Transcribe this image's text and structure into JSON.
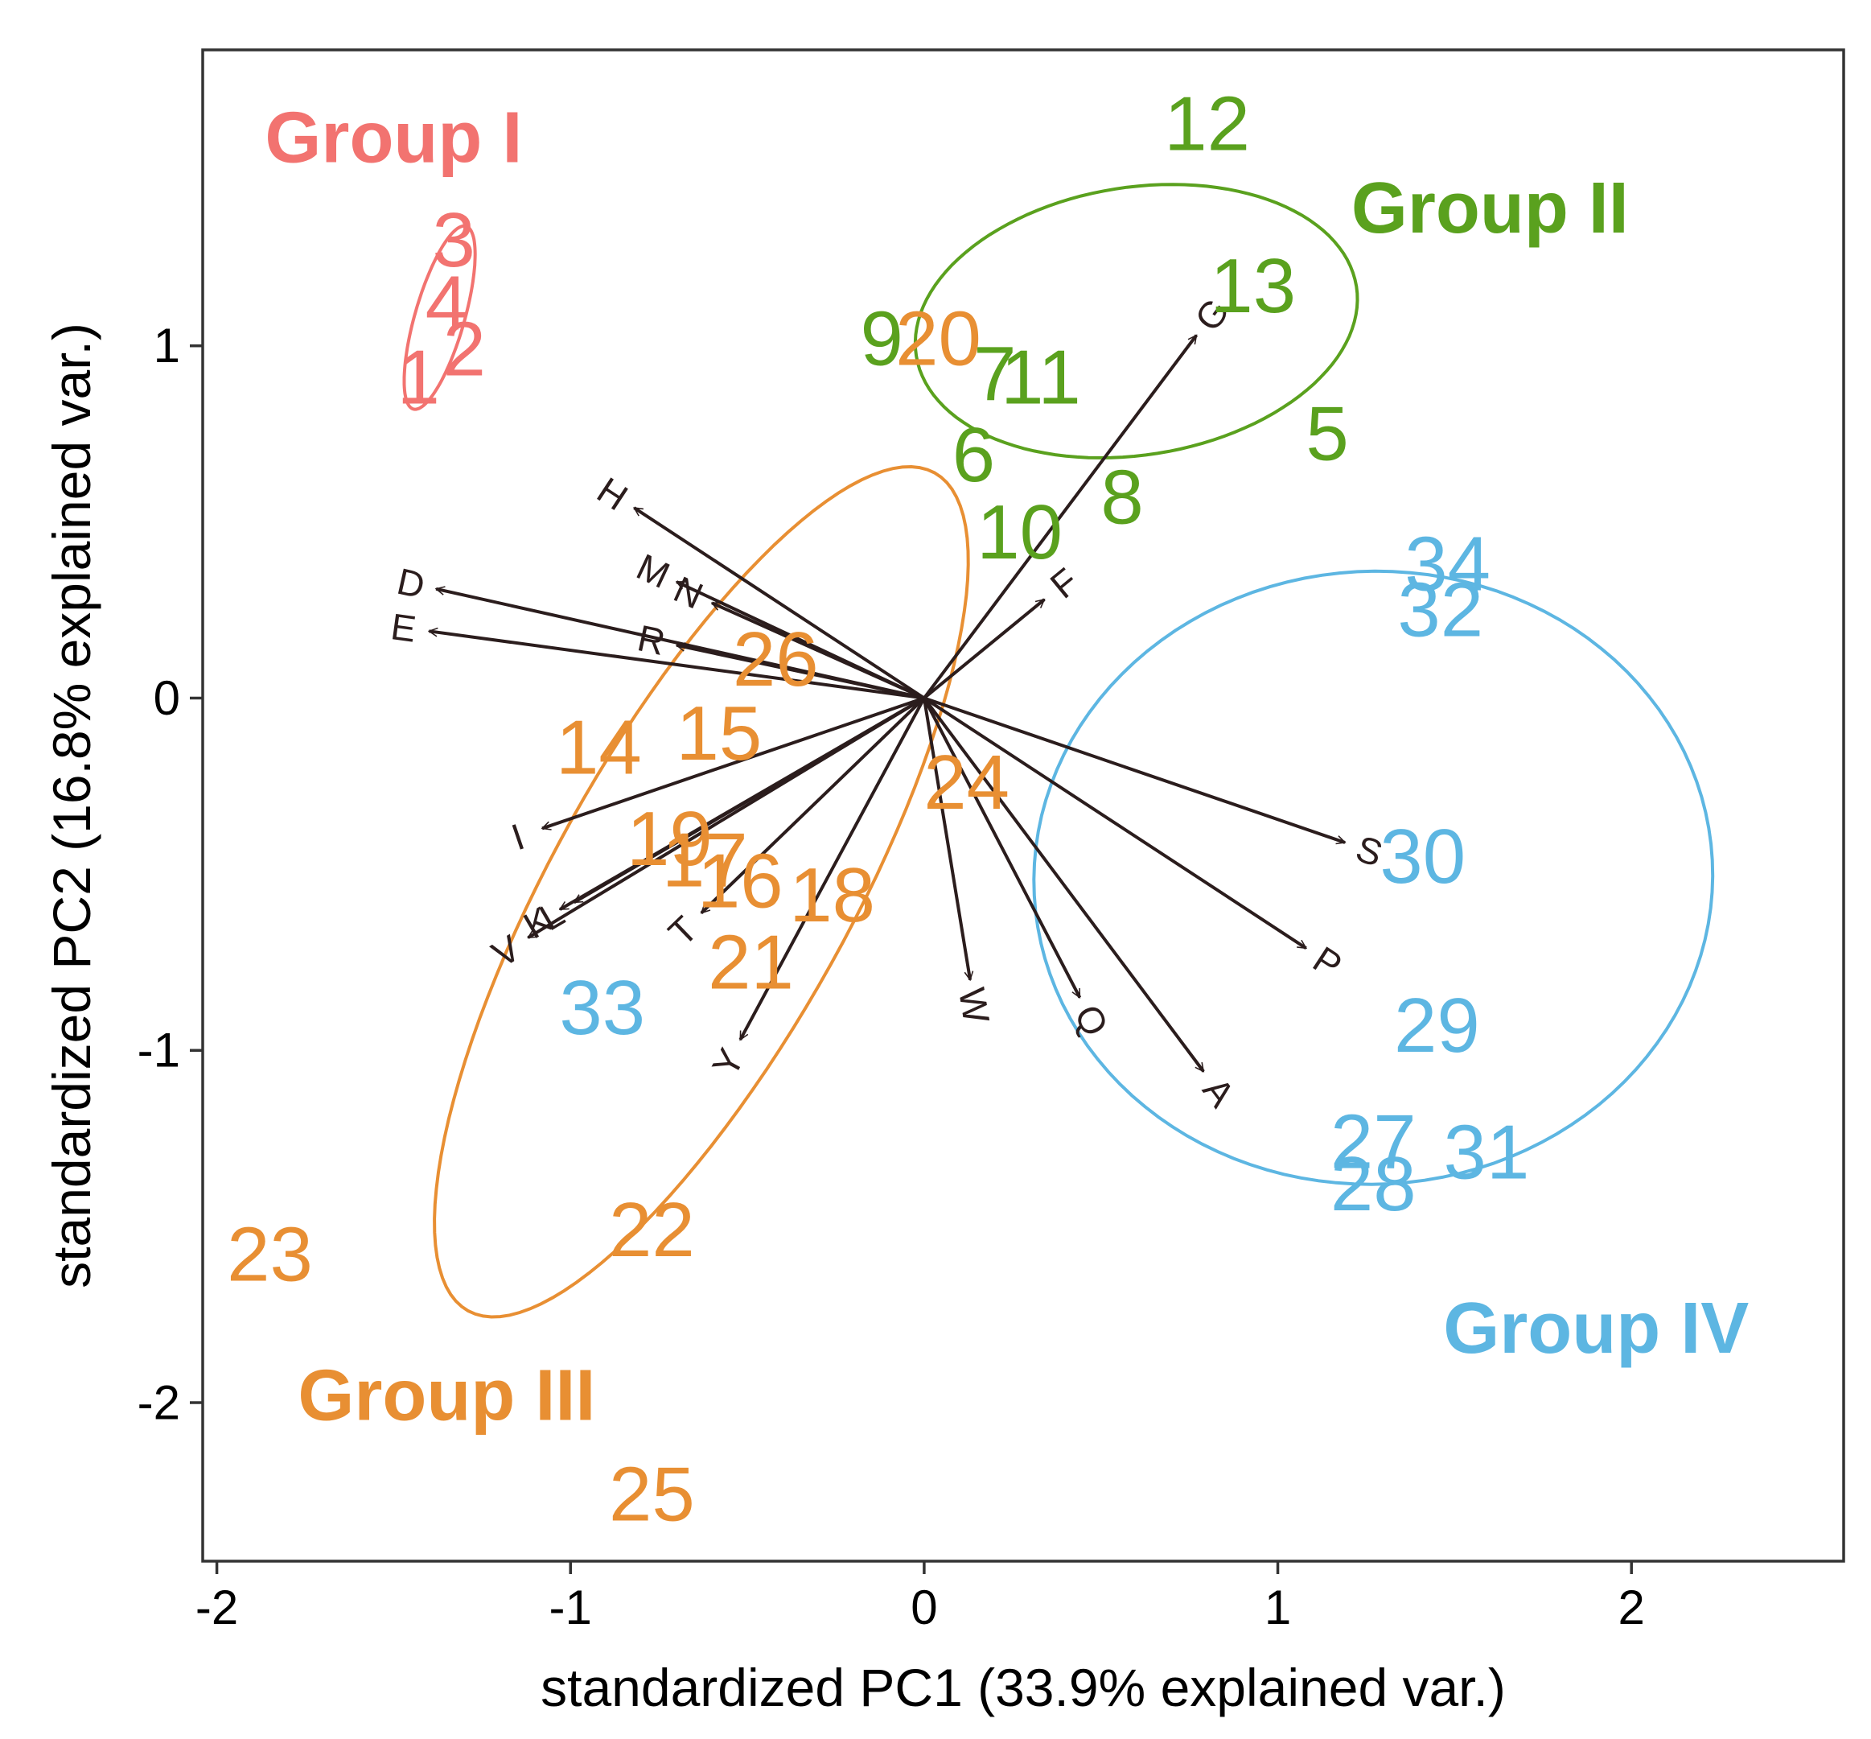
{
  "chart_data": {
    "type": "scatter",
    "subtype": "pca-biplot",
    "title": "",
    "xlabel": "standardized PC1 (33.9% explained var.)",
    "ylabel": "standardized PC2 (16.8% explained var.)",
    "xlim": [
      -2.04,
      2.6
    ],
    "ylim": [
      -2.45,
      1.84
    ],
    "xticks": [
      -2,
      -1,
      0,
      1,
      2
    ],
    "yticks": [
      -2,
      -1,
      0,
      1
    ],
    "xtick_labels": [
      "-2",
      "-1",
      "0",
      "1",
      "2"
    ],
    "ytick_labels": [
      "-2",
      "-1",
      "0",
      "1"
    ],
    "grid": false,
    "groups": [
      {
        "name": "Group I",
        "color": "#f27370",
        "label_pos": [
          -1.5,
          1.59
        ],
        "ellipse": {
          "cx": -1.37,
          "cy": 1.08,
          "rx": 0.27,
          "ry": 0.07,
          "angle": 74
        }
      },
      {
        "name": "Group II",
        "color": "#5aa11e",
        "label_pos": [
          1.6,
          1.39
        ],
        "ellipse": {
          "cx": 0.6,
          "cy": 1.07,
          "rx": 0.63,
          "ry": 0.38,
          "angle": 9
        }
      },
      {
        "name": "Group III",
        "color": "#e88f33",
        "label_pos": [
          -1.35,
          -1.98
        ],
        "ellipse": {
          "cx": -0.63,
          "cy": -0.55,
          "rx": 1.36,
          "ry": 0.42,
          "angle": 61
        }
      },
      {
        "name": "Group IV",
        "color": "#5db6e2",
        "label_pos": [
          1.9,
          -1.79
        ],
        "ellipse": {
          "cx": 1.27,
          "cy": -0.51,
          "rx": 0.96,
          "ry": 0.87,
          "angle": 3
        }
      }
    ],
    "points": [
      {
        "label": "1",
        "group": "Group I",
        "x": -1.43,
        "y": 0.91
      },
      {
        "label": "2",
        "group": "Group I",
        "x": -1.3,
        "y": 0.99
      },
      {
        "label": "3",
        "group": "Group I",
        "x": -1.33,
        "y": 1.3
      },
      {
        "label": "4",
        "group": "Group I",
        "x": -1.35,
        "y": 1.12
      },
      {
        "label": "5",
        "group": "Group II",
        "x": 1.14,
        "y": 0.75
      },
      {
        "label": "6",
        "group": "Group II",
        "x": 0.14,
        "y": 0.69
      },
      {
        "label": "7",
        "group": "Group II",
        "x": 0.2,
        "y": 0.92
      },
      {
        "label": "8",
        "group": "Group II",
        "x": 0.56,
        "y": 0.57
      },
      {
        "label": "9",
        "group": "Group II",
        "x": -0.12,
        "y": 1.02
      },
      {
        "label": "10",
        "group": "Group II",
        "x": 0.27,
        "y": 0.47
      },
      {
        "label": "11",
        "group": "Group II",
        "x": 0.33,
        "y": 0.91
      },
      {
        "label": "12",
        "group": "Group II",
        "x": 0.8,
        "y": 1.63
      },
      {
        "label": "13",
        "group": "Group II",
        "x": 0.93,
        "y": 1.17
      },
      {
        "label": "14",
        "group": "Group III",
        "x": -0.92,
        "y": -0.14
      },
      {
        "label": "15",
        "group": "Group III",
        "x": -0.58,
        "y": -0.1
      },
      {
        "label": "16",
        "group": "Group III",
        "x": -0.52,
        "y": -0.52
      },
      {
        "label": "17",
        "group": "Group III",
        "x": -0.62,
        "y": -0.46
      },
      {
        "label": "18",
        "group": "Group III",
        "x": -0.26,
        "y": -0.56
      },
      {
        "label": "19",
        "group": "Group III",
        "x": -0.72,
        "y": -0.4
      },
      {
        "label": "20",
        "group": "Group III",
        "x": 0.04,
        "y": 1.02
      },
      {
        "label": "21",
        "group": "Group III",
        "x": -0.49,
        "y": -0.75
      },
      {
        "label": "22",
        "group": "Group III",
        "x": -0.77,
        "y": -1.51
      },
      {
        "label": "23",
        "group": "Group III",
        "x": -1.85,
        "y": -1.58
      },
      {
        "label": "24",
        "group": "Group III",
        "x": 0.12,
        "y": -0.24
      },
      {
        "label": "25",
        "group": "Group III",
        "x": -0.77,
        "y": -2.26
      },
      {
        "label": "26",
        "group": "Group III",
        "x": -0.42,
        "y": 0.11
      },
      {
        "label": "27",
        "group": "Group IV",
        "x": 1.27,
        "y": -1.26
      },
      {
        "label": "28",
        "group": "Group IV",
        "x": 1.27,
        "y": -1.38
      },
      {
        "label": "29",
        "group": "Group IV",
        "x": 1.45,
        "y": -0.93
      },
      {
        "label": "30",
        "group": "Group IV",
        "x": 1.41,
        "y": -0.45
      },
      {
        "label": "31",
        "group": "Group IV",
        "x": 1.59,
        "y": -1.29
      },
      {
        "label": "32",
        "group": "Group IV",
        "x": 1.46,
        "y": 0.25
      },
      {
        "label": "33",
        "group": "Group IV",
        "x": -0.91,
        "y": -0.88
      },
      {
        "label": "34",
        "group": "Group IV",
        "x": 1.48,
        "y": 0.38
      }
    ],
    "variables": [
      {
        "label": "G",
        "x": 0.77,
        "y": 1.03
      },
      {
        "label": "F",
        "x": 0.34,
        "y": 0.28
      },
      {
        "label": "H",
        "x": -0.82,
        "y": 0.54
      },
      {
        "label": "M",
        "x": -0.7,
        "y": 0.33
      },
      {
        "label": "N",
        "x": -0.6,
        "y": 0.27
      },
      {
        "label": "D",
        "x": -1.38,
        "y": 0.31
      },
      {
        "label": "E",
        "x": -1.4,
        "y": 0.19
      },
      {
        "label": "R",
        "x": -0.7,
        "y": 0.15
      },
      {
        "label": "I",
        "x": -1.08,
        "y": -0.37
      },
      {
        "label": "L",
        "x": -0.99,
        "y": -0.58
      },
      {
        "label": "K",
        "x": -1.03,
        "y": -0.6
      },
      {
        "label": "V",
        "x": -1.12,
        "y": -0.68
      },
      {
        "label": "T",
        "x": -0.63,
        "y": -0.61
      },
      {
        "label": "Y",
        "x": -0.52,
        "y": -0.97
      },
      {
        "label": "W",
        "x": 0.13,
        "y": -0.8
      },
      {
        "label": "Q",
        "x": 0.44,
        "y": -0.85
      },
      {
        "label": "A",
        "x": 0.79,
        "y": -1.06
      },
      {
        "label": "P",
        "x": 1.08,
        "y": -0.71
      },
      {
        "label": "S",
        "x": 1.19,
        "y": -0.41
      }
    ],
    "arrow_color": "#2b1d1d"
  }
}
